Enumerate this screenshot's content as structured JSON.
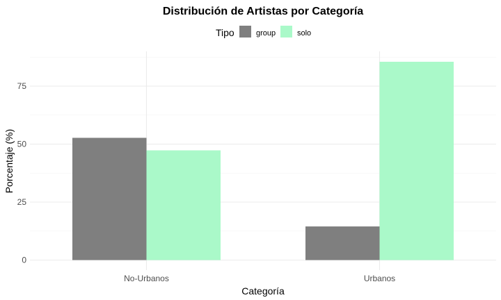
{
  "chart_data": {
    "type": "bar",
    "title": "Distribución de Artistas por Categoría",
    "xlabel": "Categoría",
    "ylabel": "Porcentaje (%)",
    "categories": [
      "No-Urbanos",
      "Urbanos"
    ],
    "series": [
      {
        "name": "group",
        "values": [
          52.7,
          14.5
        ],
        "color": "#7f7f7f"
      },
      {
        "name": "solo",
        "values": [
          47.3,
          85.5
        ],
        "color": "#aaf9c9"
      }
    ],
    "ylim": [
      0,
      90
    ],
    "yticks": [
      "0",
      "25",
      "50",
      "75"
    ],
    "legend": {
      "title": "Tipo",
      "position": "top"
    },
    "grid": true
  }
}
